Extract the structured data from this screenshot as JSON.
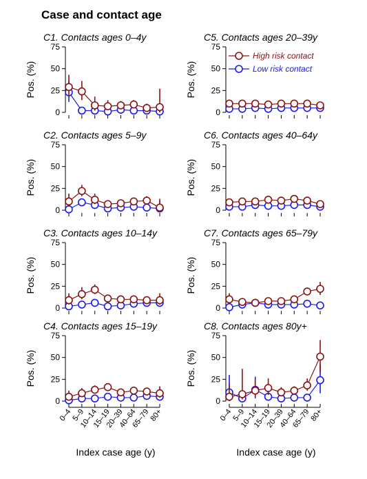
{
  "page": {
    "title": "Case and contact age",
    "xlabel": "Index case age (y)"
  },
  "chart_data": {
    "type": "line",
    "ylabel": "Pos. (%)",
    "ylim": [
      0,
      75
    ],
    "yticks": [
      0,
      25,
      50,
      75
    ],
    "categories": [
      "0–4",
      "5–9",
      "10–14",
      "15–19",
      "20–39",
      "40–64",
      "65–79",
      "80+"
    ],
    "legend": {
      "placement": "panel C5, upper right",
      "entries": [
        "High risk contact",
        "Low risk contact"
      ]
    },
    "colors": {
      "high": "#8b1010",
      "low": "#1a1aee"
    },
    "panels": [
      {
        "id": "C1",
        "title": "C1. Contacts ages 0–4y",
        "series": [
          {
            "name": "High risk contact",
            "values": [
              29,
              24,
              8,
              7,
              8,
              9,
              5,
              6
            ],
            "lower": [
              19,
              14,
              2,
              3,
              4,
              5,
              2,
              0
            ],
            "upper": [
              43,
              36,
              18,
              14,
              13,
              14,
              10,
              27
            ]
          },
          {
            "name": "Low risk contact",
            "values": [
              23,
              2,
              2,
              1,
              3,
              2,
              2,
              1
            ],
            "lower": [
              12,
              0,
              0,
              0,
              1,
              1,
              1,
              0
            ],
            "upper": [
              36,
              5,
              5,
              3,
              5,
              4,
              4,
              4
            ]
          }
        ]
      },
      {
        "id": "C2",
        "title": "C2. Contacts ages 5–9y",
        "series": [
          {
            "name": "High risk contact",
            "values": [
              10,
              22,
              12,
              7,
              8,
              10,
              11,
              3
            ],
            "lower": [
              4,
              16,
              7,
              4,
              5,
              7,
              7,
              0
            ],
            "upper": [
              19,
              29,
              19,
              11,
              11,
              14,
              16,
              13
            ]
          },
          {
            "name": "Low risk contact",
            "values": [
              1,
              9,
              6,
              2,
              3,
              4,
              3,
              2
            ],
            "lower": [
              0,
              6,
              3,
              1,
              2,
              3,
              2,
              0
            ],
            "upper": [
              4,
              13,
              9,
              4,
              5,
              6,
              5,
              10
            ]
          }
        ]
      },
      {
        "id": "C3",
        "title": "C3. Contacts ages 10–14y",
        "series": [
          {
            "name": "High risk contact",
            "values": [
              9,
              16,
              21,
              11,
              10,
              10,
              9,
              9
            ],
            "lower": [
              4,
              10,
              16,
              8,
              7,
              7,
              6,
              4
            ],
            "upper": [
              17,
              24,
              27,
              15,
              13,
              13,
              13,
              17
            ]
          },
          {
            "name": "Low risk contact",
            "values": [
              2,
              4,
              6,
              2,
              3,
              5,
              6,
              6
            ],
            "lower": [
              0,
              2,
              4,
              1,
              2,
              3,
              4,
              2
            ],
            "upper": [
              6,
              7,
              9,
              4,
              5,
              7,
              9,
              13
            ]
          }
        ]
      },
      {
        "id": "C4",
        "title": "C4. Contacts ages 15–19y",
        "series": [
          {
            "name": "High risk contact",
            "values": [
              5,
              9,
              13,
              16,
              10,
              12,
              11,
              9
            ],
            "lower": [
              1,
              5,
              9,
              13,
              8,
              9,
              8,
              4
            ],
            "upper": [
              12,
              15,
              18,
              20,
              13,
              15,
              15,
              17
            ]
          },
          {
            "name": "Low risk contact",
            "values": [
              1,
              3,
              3,
              5,
              4,
              4,
              6,
              5
            ],
            "lower": [
              0,
              1,
              2,
              3,
              3,
              3,
              4,
              2
            ],
            "upper": [
              5,
              6,
              5,
              7,
              5,
              6,
              8,
              10
            ]
          }
        ]
      },
      {
        "id": "C5",
        "title": "C5. Contacts ages 20–39y",
        "series": [
          {
            "name": "High risk contact",
            "values": [
              10,
              10,
              10,
              9,
              10,
              10,
              10,
              8
            ],
            "lower": [
              8,
              8,
              8,
              8,
              9,
              9,
              8,
              6
            ],
            "upper": [
              12,
              12,
              12,
              11,
              11,
              11,
              12,
              11
            ]
          },
          {
            "name": "Low risk contact",
            "values": [
              4,
              4,
              5,
              4,
              5,
              5,
              5,
              5
            ],
            "lower": [
              3,
              3,
              4,
              3,
              4,
              4,
              4,
              3
            ],
            "upper": [
              5,
              5,
              6,
              5,
              6,
              6,
              6,
              7
            ]
          }
        ]
      },
      {
        "id": "C6",
        "title": "C6. Contacts ages 40–64y",
        "series": [
          {
            "name": "High risk contact",
            "values": [
              9,
              10,
              10,
              12,
              11,
              13,
              11,
              7
            ],
            "lower": [
              7,
              8,
              9,
              10,
              10,
              12,
              9,
              5
            ],
            "upper": [
              11,
              12,
              12,
              14,
              12,
              14,
              13,
              10
            ]
          },
          {
            "name": "Low risk contact",
            "values": [
              4,
              4,
              6,
              5,
              5,
              6,
              6,
              4
            ],
            "lower": [
              3,
              3,
              5,
              4,
              4,
              5,
              5,
              2
            ],
            "upper": [
              5,
              5,
              7,
              6,
              6,
              7,
              7,
              6
            ]
          }
        ]
      },
      {
        "id": "C7",
        "title": "C7. Contacts ages 65–79y",
        "series": [
          {
            "name": "High risk contact",
            "values": [
              10,
              7,
              6,
              8,
              8,
              10,
              19,
              22
            ],
            "lower": [
              5,
              4,
              4,
              5,
              6,
              8,
              15,
              15
            ],
            "upper": [
              17,
              11,
              10,
              12,
              11,
              13,
              23,
              30
            ]
          },
          {
            "name": "Low risk contact",
            "values": [
              1,
              4,
              6,
              4,
              4,
              4,
              5,
              3
            ],
            "lower": [
              0,
              2,
              3,
              2,
              3,
              3,
              3,
              1
            ],
            "upper": [
              4,
              7,
              9,
              6,
              6,
              6,
              7,
              6
            ]
          }
        ]
      },
      {
        "id": "C8",
        "title": "C8. Contacts ages 80y+",
        "series": [
          {
            "name": "High risk contact",
            "values": [
              5,
              8,
              12,
              15,
              10,
              12,
              18,
              51
            ],
            "lower": [
              0,
              2,
              5,
              7,
              6,
              8,
              12,
              33
            ],
            "upper": [
              20,
              37,
              25,
              26,
              16,
              17,
              26,
              70
            ]
          },
          {
            "name": "Low risk contact",
            "values": [
              10,
              3,
              13,
              5,
              3,
              4,
              4,
              24
            ],
            "lower": [
              0,
              0,
              3,
              1,
              1,
              2,
              1,
              9
            ],
            "upper": [
              30,
              10,
              28,
              11,
              6,
              7,
              8,
              42
            ]
          }
        ]
      }
    ]
  }
}
